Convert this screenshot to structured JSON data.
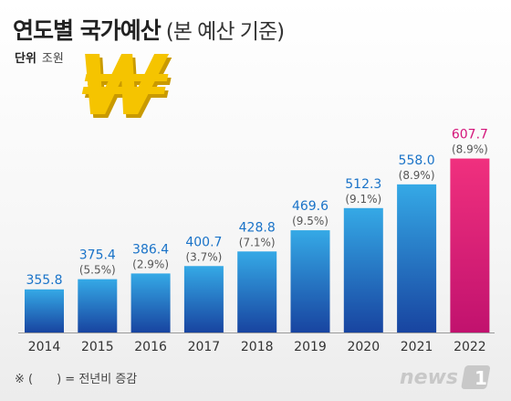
{
  "title": "연도별 국가예산",
  "subtitle": "(본 예산 기준)",
  "unit_label": "단위",
  "unit_value": "조원",
  "footnote": "※ (　　) = 전년비 증감",
  "logo_text": "news1",
  "icon": "won-sign-icon",
  "colors": {
    "bar_top": "#35a9e6",
    "bar_bottom": "#1844a0",
    "highlight_top": "#f0307e",
    "highlight_bottom": "#c1126e",
    "value_text": "#1a73c8",
    "highlight_text": "#d4147a",
    "won_gold": "#f5c400"
  },
  "chart_data": {
    "type": "bar",
    "categories": [
      "2014",
      "2015",
      "2016",
      "2017",
      "2018",
      "2019",
      "2020",
      "2021",
      "2022"
    ],
    "values": [
      355.8,
      375.4,
      386.4,
      400.7,
      428.8,
      469.6,
      512.3,
      558.0,
      607.7
    ],
    "value_labels": [
      "355.8",
      "375.4",
      "386.4",
      "400.7",
      "428.8",
      "469.6",
      "512.3",
      "558.0",
      "607.7"
    ],
    "change_labels": [
      "",
      "(5.5%)",
      "(2.9%)",
      "(3.7%)",
      "(7.1%)",
      "(9.5%)",
      "(9.1%)",
      "(8.9%)",
      "(8.9%)"
    ],
    "highlight_index": 8,
    "title": "연도별 국가예산",
    "xlabel": "",
    "ylabel": "",
    "grid": false,
    "legend": "none"
  }
}
